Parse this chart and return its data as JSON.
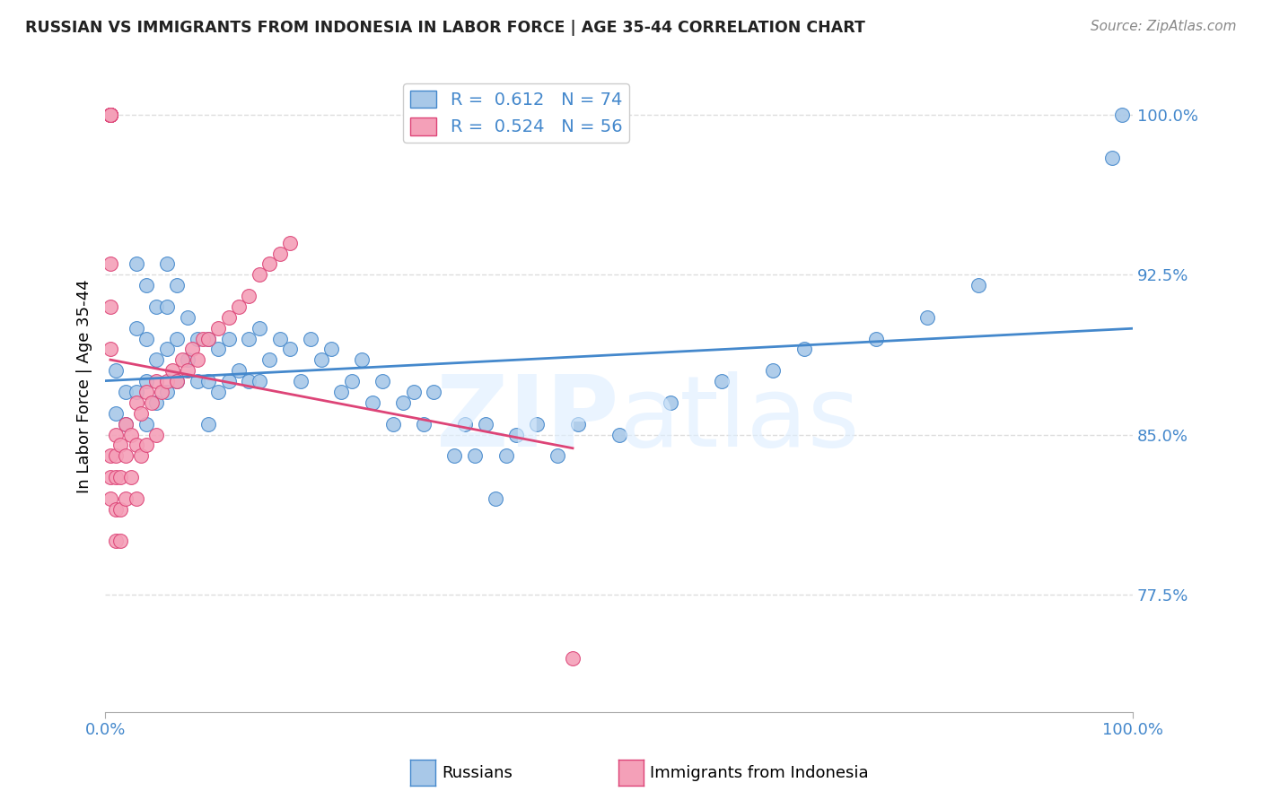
{
  "title": "RUSSIAN VS IMMIGRANTS FROM INDONESIA IN LABOR FORCE | AGE 35-44 CORRELATION CHART",
  "source": "Source: ZipAtlas.com",
  "ylabel": "In Labor Force | Age 35-44",
  "xlim": [
    0.0,
    1.0
  ],
  "ylim": [
    0.72,
    1.025
  ],
  "yticks": [
    0.775,
    0.85,
    0.925,
    1.0
  ],
  "ytick_labels": [
    "77.5%",
    "85.0%",
    "92.5%",
    "100.0%"
  ],
  "xtick_labels": [
    "0.0%",
    "100.0%"
  ],
  "r_russian": 0.612,
  "n_russian": 74,
  "r_indonesia": 0.524,
  "n_indonesia": 56,
  "russian_color": "#a8c8e8",
  "indonesia_color": "#f4a0b8",
  "russian_line_color": "#4488cc",
  "indonesia_line_color": "#dd4477",
  "background_color": "#ffffff",
  "grid_color": "#dddddd",
  "russian_x": [
    0.01,
    0.01,
    0.02,
    0.02,
    0.03,
    0.03,
    0.03,
    0.04,
    0.04,
    0.04,
    0.04,
    0.05,
    0.05,
    0.05,
    0.06,
    0.06,
    0.06,
    0.06,
    0.07,
    0.07,
    0.07,
    0.08,
    0.08,
    0.09,
    0.09,
    0.1,
    0.1,
    0.1,
    0.11,
    0.11,
    0.12,
    0.12,
    0.13,
    0.14,
    0.14,
    0.15,
    0.15,
    0.16,
    0.17,
    0.18,
    0.19,
    0.2,
    0.21,
    0.22,
    0.23,
    0.24,
    0.25,
    0.26,
    0.27,
    0.28,
    0.29,
    0.3,
    0.31,
    0.32,
    0.34,
    0.35,
    0.36,
    0.37,
    0.38,
    0.39,
    0.4,
    0.42,
    0.44,
    0.46,
    0.5,
    0.55,
    0.6,
    0.65,
    0.68,
    0.75,
    0.8,
    0.85,
    0.98,
    0.99
  ],
  "russian_y": [
    0.88,
    0.86,
    0.87,
    0.855,
    0.93,
    0.9,
    0.87,
    0.92,
    0.895,
    0.875,
    0.855,
    0.91,
    0.885,
    0.865,
    0.93,
    0.91,
    0.89,
    0.87,
    0.92,
    0.895,
    0.875,
    0.905,
    0.885,
    0.895,
    0.875,
    0.895,
    0.875,
    0.855,
    0.89,
    0.87,
    0.895,
    0.875,
    0.88,
    0.895,
    0.875,
    0.9,
    0.875,
    0.885,
    0.895,
    0.89,
    0.875,
    0.895,
    0.885,
    0.89,
    0.87,
    0.875,
    0.885,
    0.865,
    0.875,
    0.855,
    0.865,
    0.87,
    0.855,
    0.87,
    0.84,
    0.855,
    0.84,
    0.855,
    0.82,
    0.84,
    0.85,
    0.855,
    0.84,
    0.855,
    0.85,
    0.865,
    0.875,
    0.88,
    0.89,
    0.895,
    0.905,
    0.92,
    0.98,
    1.0
  ],
  "indonesia_x": [
    0.005,
    0.005,
    0.005,
    0.005,
    0.005,
    0.005,
    0.005,
    0.005,
    0.005,
    0.005,
    0.01,
    0.01,
    0.01,
    0.01,
    0.01,
    0.015,
    0.015,
    0.015,
    0.015,
    0.02,
    0.02,
    0.02,
    0.025,
    0.025,
    0.03,
    0.03,
    0.03,
    0.035,
    0.035,
    0.04,
    0.04,
    0.045,
    0.05,
    0.05,
    0.055,
    0.06,
    0.065,
    0.07,
    0.075,
    0.08,
    0.085,
    0.09,
    0.095,
    0.1,
    0.11,
    0.12,
    0.13,
    0.14,
    0.15,
    0.16,
    0.17,
    0.18,
    0.005,
    0.005,
    0.005,
    0.455
  ],
  "indonesia_y": [
    1.0,
    1.0,
    1.0,
    1.0,
    1.0,
    1.0,
    1.0,
    0.84,
    0.83,
    0.82,
    0.85,
    0.84,
    0.83,
    0.815,
    0.8,
    0.845,
    0.83,
    0.815,
    0.8,
    0.855,
    0.84,
    0.82,
    0.85,
    0.83,
    0.865,
    0.845,
    0.82,
    0.86,
    0.84,
    0.87,
    0.845,
    0.865,
    0.875,
    0.85,
    0.87,
    0.875,
    0.88,
    0.875,
    0.885,
    0.88,
    0.89,
    0.885,
    0.895,
    0.895,
    0.9,
    0.905,
    0.91,
    0.915,
    0.925,
    0.93,
    0.935,
    0.94,
    0.93,
    0.91,
    0.89,
    0.745
  ]
}
